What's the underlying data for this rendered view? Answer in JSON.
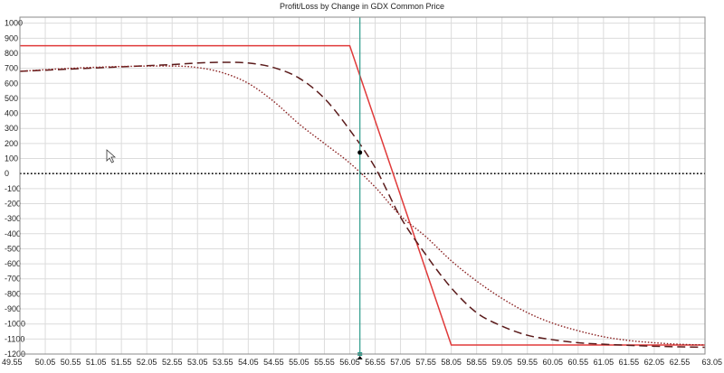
{
  "colors": {
    "background": "#ffffff",
    "grid": "#dcdcdc",
    "frame": "#8a8a8a",
    "expiration_line": "#e03a3a",
    "dashed_curve": "#5a1a1a",
    "dotted_curve": "#8a2020",
    "zero_line": "#000000",
    "cursor_line": "#2a9a8a"
  },
  "chart_data": {
    "type": "line",
    "title": "Profit/Loss by Change in GDX Common Price",
    "xlabel": "",
    "ylabel": "",
    "xlim": [
      49.55,
      63.05
    ],
    "ylim": [
      -1200,
      1000
    ],
    "x_ticks": [
      "49.55",
      "50.05",
      "50.55",
      "51.05",
      "51.55",
      "52.05",
      "52.55",
      "53.05",
      "53.55",
      "54.05",
      "54.55",
      "55.05",
      "55.55",
      "56.05",
      "56.55",
      "57.05",
      "57.55",
      "58.05",
      "58.55",
      "59.05",
      "59.55",
      "60.05",
      "60.55",
      "61.05",
      "61.55",
      "62.05",
      "62.55",
      "63.05"
    ],
    "y_ticks": [
      "1000",
      "900",
      "800",
      "700",
      "600",
      "500",
      "400",
      "300",
      "200",
      "100",
      "0",
      "-100",
      "-200",
      "-300",
      "-400",
      "-500",
      "-600",
      "-700",
      "-800",
      "-900",
      "-1000",
      "-1100",
      "-1200"
    ],
    "grid": true,
    "zero_line": 0,
    "current_price": 56.25,
    "marker_point": {
      "x": 56.25,
      "y": 140
    },
    "series": [
      {
        "style": "solid",
        "x": [
          49.55,
          56.05,
          58.05,
          63.05
        ],
        "y": [
          850,
          850,
          -1140,
          -1140
        ]
      },
      {
        "style": "dashed",
        "x": [
          49.55,
          50.55,
          51.55,
          52.55,
          53.05,
          53.55,
          54.05,
          54.55,
          55.05,
          55.55,
          56.05,
          56.55,
          57.05,
          57.55,
          58.05,
          58.55,
          59.05,
          59.55,
          60.05,
          60.55,
          61.05,
          61.55,
          62.05,
          62.55,
          63.05
        ],
        "y": [
          680,
          695,
          710,
          725,
          735,
          740,
          735,
          705,
          635,
          500,
          290,
          40,
          -290,
          -540,
          -760,
          -925,
          -1015,
          -1075,
          -1105,
          -1125,
          -1135,
          -1142,
          -1148,
          -1152,
          -1155
        ]
      },
      {
        "style": "dotted",
        "x": [
          49.55,
          50.55,
          51.55,
          52.55,
          53.05,
          53.55,
          54.05,
          54.55,
          55.05,
          55.55,
          56.05,
          56.55,
          57.05,
          57.55,
          58.05,
          58.55,
          59.05,
          59.55,
          60.05,
          60.55,
          61.05,
          61.55,
          62.05,
          62.55,
          63.05
        ],
        "y": [
          680,
          700,
          712,
          715,
          705,
          670,
          600,
          480,
          330,
          200,
          70,
          -90,
          -280,
          -420,
          -580,
          -715,
          -830,
          -925,
          -995,
          -1045,
          -1085,
          -1110,
          -1125,
          -1135,
          -1140
        ]
      }
    ]
  }
}
